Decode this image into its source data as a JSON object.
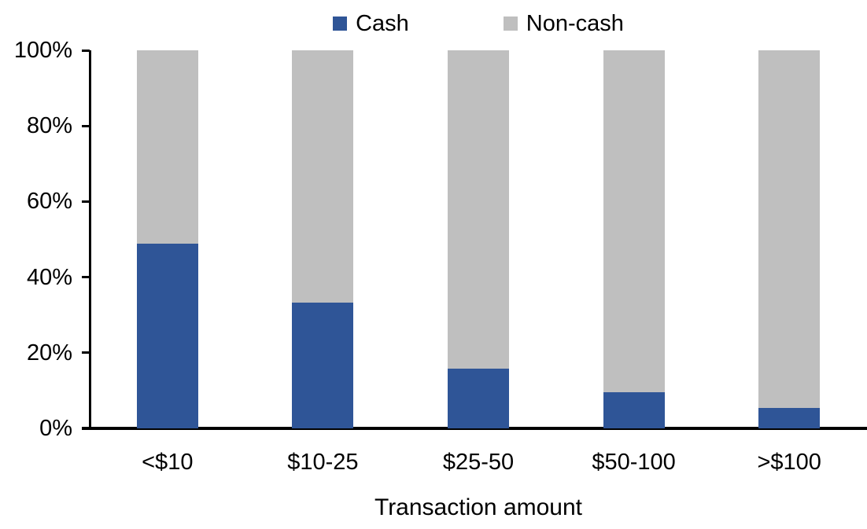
{
  "chart_data": {
    "type": "bar",
    "stacked": true,
    "percent_stacked": true,
    "xlabel": "Transaction amount",
    "ylabel": "",
    "categories": [
      "<$10",
      "$10-25",
      "$25-50",
      "$50-100",
      ">$100"
    ],
    "series": [
      {
        "name": "Cash",
        "color": "#2F5597",
        "values": [
          48.9,
          33.3,
          15.8,
          9.6,
          5.5
        ]
      },
      {
        "name": "Non-cash",
        "color": "#BFBFBF",
        "values": [
          51.1,
          66.7,
          84.2,
          90.4,
          94.5
        ]
      }
    ],
    "ylim": [
      0,
      100
    ],
    "ytick_values": [
      0,
      20,
      40,
      60,
      80,
      100
    ],
    "ytick_labels": [
      "0%",
      "20%",
      "40%",
      "60%",
      "80%",
      "100%"
    ],
    "grid": false,
    "legend_position": "top-center"
  },
  "colors": {
    "axis": "#000000",
    "text": "#000000",
    "background": "#FFFFFF"
  }
}
